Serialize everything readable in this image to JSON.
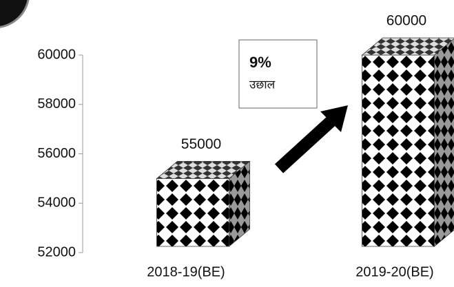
{
  "chart_data": {
    "type": "bar3d",
    "categories": [
      "2018-19(BE)",
      "2019-20(BE)"
    ],
    "values": [
      55000,
      60000
    ],
    "ylim": [
      52000,
      60000
    ],
    "yticks": [
      52000,
      54000,
      56000,
      58000,
      60000
    ],
    "annotation": {
      "title": "9%",
      "subtitle": "उछाल"
    }
  }
}
